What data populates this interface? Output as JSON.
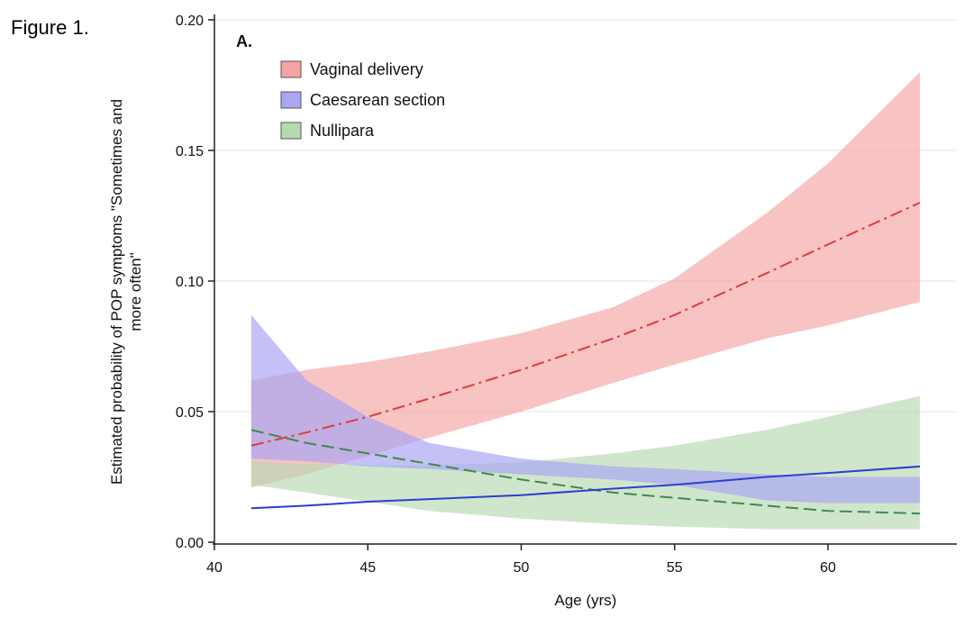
{
  "figure_label": "Figure 1.",
  "colors": {
    "vaginal_fill": "#f5a3a3",
    "vaginal_line": "#e03a3a",
    "caesarean_fill": "#a9a6f2",
    "caesarean_line": "#2a3fd1",
    "nullipara_fill": "#b7d9b0",
    "nullipara_line": "#3f8a4a",
    "overlap_fill": "#5d7fb3",
    "grid": "#e3e3e3",
    "axis": "#222222"
  },
  "chart_data": {
    "type": "area",
    "panel_label": "A.",
    "xlabel": "Age (yrs)",
    "ylabel_lines": [
      "Estimated probability of POP symptoms \"Sometimes and",
      "more often\""
    ],
    "xlim": [
      40,
      64.2
    ],
    "ylim": [
      0,
      0.2
    ],
    "x_ticks": [
      40,
      45,
      50,
      55,
      60
    ],
    "y_ticks": [
      0.0,
      0.05,
      0.1,
      0.15,
      0.2
    ],
    "x_tick_labels": [
      "40",
      "45",
      "50",
      "55",
      "60"
    ],
    "y_tick_labels": [
      "0.00",
      "0.05",
      "0.10",
      "0.15",
      "0.20"
    ],
    "grid": "horizontal",
    "legend_position": "top-left",
    "x": [
      41.2,
      43,
      45,
      47,
      50,
      53,
      55,
      58,
      60,
      63
    ],
    "series": [
      {
        "name": "Vaginal delivery",
        "line_style": "dash-dot",
        "values": [
          0.037,
          0.042,
          0.048,
          0.055,
          0.066,
          0.078,
          0.087,
          0.103,
          0.114,
          0.13
        ],
        "lower": [
          0.021,
          0.026,
          0.033,
          0.04,
          0.05,
          0.061,
          0.068,
          0.078,
          0.083,
          0.092
        ],
        "upper": [
          0.062,
          0.066,
          0.069,
          0.073,
          0.08,
          0.09,
          0.101,
          0.126,
          0.145,
          0.18
        ]
      },
      {
        "name": "Caesarean section",
        "line_style": "solid",
        "values": [
          0.013,
          0.014,
          0.0155,
          0.0165,
          0.018,
          0.0205,
          0.022,
          0.025,
          0.0265,
          0.029
        ],
        "lower": [
          0.032,
          0.031,
          0.029,
          0.028,
          0.026,
          0.024,
          0.022,
          0.016,
          0.015,
          0.015
        ],
        "upper": [
          0.087,
          0.062,
          0.048,
          0.038,
          0.032,
          0.029,
          0.028,
          0.026,
          0.025,
          0.025
        ]
      },
      {
        "name": "Nullipara",
        "line_style": "dashed",
        "values": [
          0.043,
          0.038,
          0.034,
          0.03,
          0.024,
          0.019,
          0.017,
          0.014,
          0.012,
          0.011
        ],
        "lower": [
          0.022,
          0.019,
          0.0155,
          0.012,
          0.009,
          0.007,
          0.006,
          0.005,
          0.005,
          0.005
        ],
        "upper": [
          0.031,
          0.03,
          0.0295,
          0.0295,
          0.0305,
          0.034,
          0.037,
          0.043,
          0.048,
          0.056
        ]
      }
    ]
  }
}
